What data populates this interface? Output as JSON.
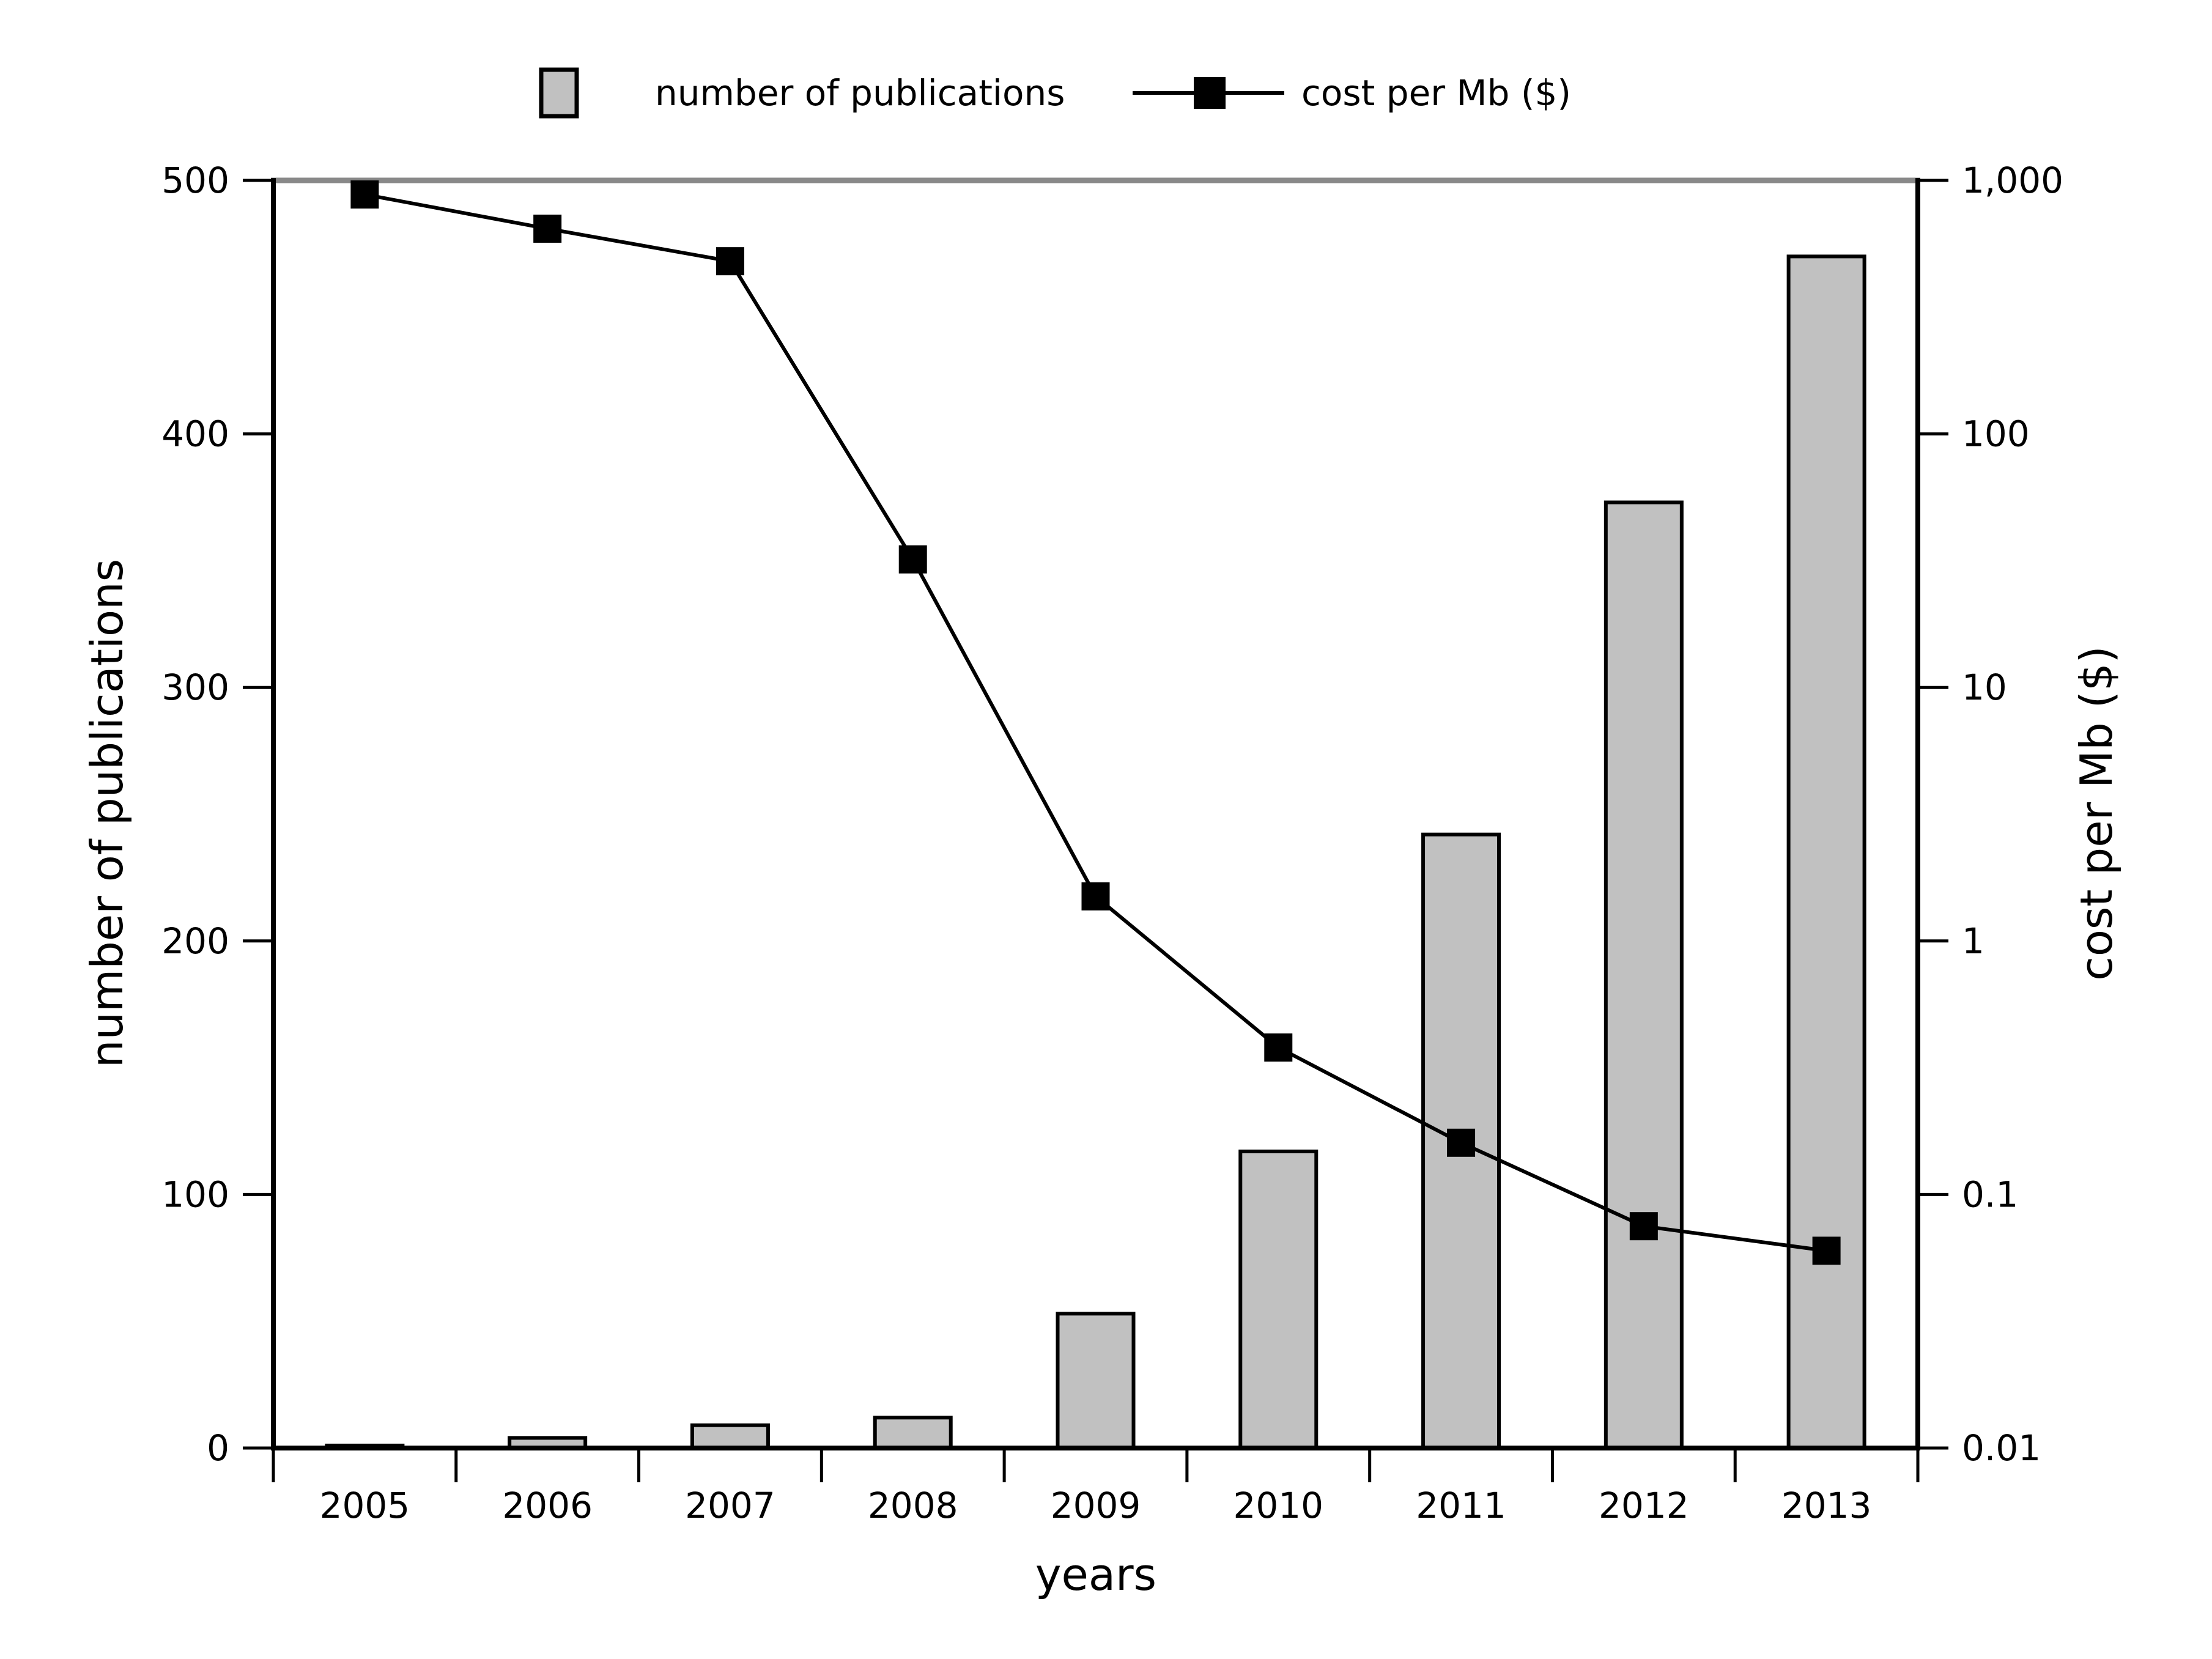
{
  "figure": {
    "background": "#ffffff",
    "frame_top_color": "#898989",
    "axis_color": "#000000"
  },
  "legend": {
    "position": "top-center",
    "items": [
      {
        "label": "number of publications",
        "swatch": "gray-bar",
        "swatch_fill": "#c1c1c1",
        "swatch_stroke": "#000000"
      },
      {
        "label": "cost per Mb ($)",
        "swatch": "line-with-square-marker",
        "swatch_color": "#000000"
      }
    ]
  },
  "chart_data": {
    "type": "bar+line",
    "categories": [
      "2005",
      "2006",
      "2007",
      "2008",
      "2009",
      "2010",
      "2011",
      "2012",
      "2013"
    ],
    "series": [
      {
        "name": "number of publications",
        "type": "bar",
        "axis": "left",
        "values": [
          1,
          4,
          9,
          12,
          53,
          117,
          242,
          373,
          470
        ],
        "fill": "#c1c1c1",
        "stroke": "#000000"
      },
      {
        "name": "cost per Mb ($)",
        "type": "line",
        "axis": "right",
        "scale": "log",
        "values": [
          880,
          645,
          480,
          32,
          1.5,
          0.38,
          0.16,
          0.075,
          0.06
        ],
        "color": "#000000",
        "marker": "filled-square"
      }
    ],
    "x_axis": {
      "label": "years",
      "tick_position": "between-categories"
    },
    "y_left": {
      "label": "number of publications",
      "range": [
        0,
        500
      ],
      "ticks": [
        0,
        100,
        200,
        300,
        400,
        500
      ],
      "tick_labels": [
        "0",
        "100",
        "200",
        "300",
        "400",
        "500"
      ]
    },
    "y_right": {
      "label": "cost per Mb ($)",
      "scale": "log",
      "range": [
        0.01,
        1000
      ],
      "ticks": [
        1000,
        100,
        10,
        1,
        0.1,
        0.01
      ],
      "tick_labels": [
        "1,000",
        "100",
        "10",
        "1",
        "0.1",
        "0.01"
      ]
    },
    "grid": false,
    "legend_position": "top-center"
  }
}
